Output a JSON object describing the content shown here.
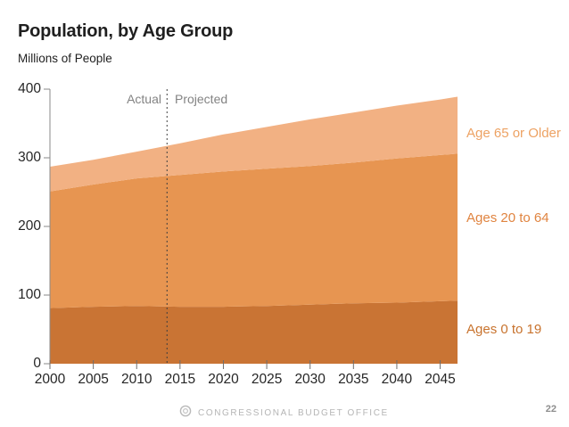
{
  "page": {
    "title": "Population, by Age Group",
    "subtitle": "Millions of People",
    "page_number": "22"
  },
  "annotations": {
    "left_of_divider": "Actual",
    "right_of_divider": "Projected"
  },
  "footer": {
    "org_name": "CONGRESSIONAL BUDGET OFFICE",
    "logo": "cbo-seal-icon"
  },
  "colors": {
    "area_ages_0_19": "#C97434",
    "area_ages_20_64": "#E79551",
    "area_age_65_plus": "#F2B183",
    "label_ages_0_19": "#C8732E",
    "label_ages_20_64": "#E08440",
    "label_age_65_plus": "#EDA263",
    "axis": "#8A8A8A",
    "tick": "#6E6E6E",
    "divider": "#3F3F3F",
    "annotation_text": "#838383",
    "tick_label_text": "#262626",
    "footer_text": "#B5B5B5"
  },
  "chart_data": {
    "type": "area",
    "stacked": true,
    "title": "Population, by Age Group",
    "units": "Millions of People",
    "x": [
      2000,
      2005,
      2010,
      2015,
      2020,
      2025,
      2030,
      2035,
      2040,
      2045,
      2047
    ],
    "xticks": [
      2000,
      2005,
      2010,
      2015,
      2020,
      2025,
      2030,
      2035,
      2040,
      2045
    ],
    "xlim": [
      2000,
      2047
    ],
    "yticks": [
      0,
      100,
      200,
      300,
      400
    ],
    "ylim": [
      0,
      400
    ],
    "grid": false,
    "legend_position": "right-of-areas",
    "divider_x": 2013.5,
    "divider_style": "dashed-vertical",
    "series": [
      {
        "name": "Ages 0 to 19",
        "values": [
          81,
          83,
          84,
          83,
          83,
          84,
          86,
          88,
          89,
          91,
          92
        ],
        "color": "#C97434",
        "label_color": "#C8732E"
      },
      {
        "name": "Ages 20 to 64",
        "values": [
          170,
          178,
          186,
          192,
          197,
          200,
          202,
          205,
          210,
          213,
          214
        ],
        "color": "#E79551",
        "label_color": "#E08440"
      },
      {
        "name": "Age 65 or Older",
        "values": [
          36,
          36,
          39,
          46,
          54,
          61,
          68,
          73,
          77,
          81,
          83
        ],
        "color": "#F2B183",
        "label_color": "#EDA263"
      }
    ],
    "stacked_totals": [
      287,
      297,
      309,
      321,
      334,
      345,
      356,
      366,
      376,
      385,
      389
    ]
  }
}
